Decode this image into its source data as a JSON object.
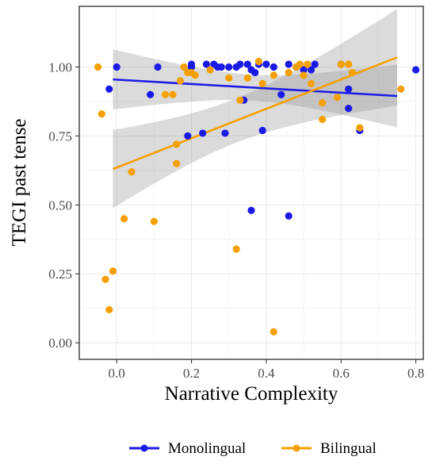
{
  "chart_data": {
    "type": "scatter",
    "xlabel": "Narrative Complexity",
    "ylabel": "TEGI past tense",
    "xlim": [
      -0.1,
      0.82
    ],
    "ylim": [
      -0.06,
      1.22
    ],
    "x_ticks": [
      0.0,
      0.2,
      0.4,
      0.6,
      0.8
    ],
    "x_tick_labels": [
      "0.0",
      "0.2",
      "0.4",
      "0.6",
      "0.8"
    ],
    "y_ticks": [
      0.0,
      0.25,
      0.5,
      0.75,
      1.0
    ],
    "y_tick_labels": [
      "0.00",
      "0.25",
      "0.50",
      "0.75",
      "1.00"
    ],
    "grid": true,
    "legend_position": "bottom",
    "series": [
      {
        "name": "Monolingual",
        "color": "#1a1ae6",
        "points": [
          [
            -0.02,
            0.92
          ],
          [
            0.0,
            1.0
          ],
          [
            0.09,
            0.9
          ],
          [
            0.11,
            1.0
          ],
          [
            0.19,
            0.75
          ],
          [
            0.2,
            1.0
          ],
          [
            0.2,
            1.01
          ],
          [
            0.23,
            0.76
          ],
          [
            0.24,
            1.01
          ],
          [
            0.26,
            1.01
          ],
          [
            0.27,
            1.0
          ],
          [
            0.28,
            1.0
          ],
          [
            0.29,
            0.76
          ],
          [
            0.3,
            1.0
          ],
          [
            0.32,
            1.0
          ],
          [
            0.33,
            1.01
          ],
          [
            0.34,
            0.88
          ],
          [
            0.35,
            1.01
          ],
          [
            0.36,
            0.48
          ],
          [
            0.36,
            0.99
          ],
          [
            0.37,
            0.98
          ],
          [
            0.38,
            1.01
          ],
          [
            0.39,
            0.77
          ],
          [
            0.4,
            1.01
          ],
          [
            0.42,
            1.0
          ],
          [
            0.44,
            0.9
          ],
          [
            0.46,
            0.46
          ],
          [
            0.46,
            1.01
          ],
          [
            0.48,
            1.0
          ],
          [
            0.5,
            0.99
          ],
          [
            0.52,
            0.99
          ],
          [
            0.53,
            1.01
          ],
          [
            0.6,
            1.01
          ],
          [
            0.62,
            0.85
          ],
          [
            0.62,
            0.92
          ],
          [
            0.65,
            0.77
          ],
          [
            0.8,
            0.99
          ]
        ],
        "trend": {
          "x": [
            -0.01,
            0.75
          ],
          "y": [
            0.955,
            0.895
          ]
        }
      },
      {
        "name": "Bilingual",
        "color": "#f5a000",
        "points": [
          [
            -0.05,
            1.0
          ],
          [
            -0.04,
            0.83
          ],
          [
            -0.03,
            0.23
          ],
          [
            -0.02,
            0.12
          ],
          [
            -0.01,
            0.26
          ],
          [
            0.02,
            0.45
          ],
          [
            0.04,
            0.62
          ],
          [
            0.1,
            0.44
          ],
          [
            0.13,
            0.9
          ],
          [
            0.15,
            0.9
          ],
          [
            0.16,
            0.72
          ],
          [
            0.16,
            0.65
          ],
          [
            0.17,
            0.95
          ],
          [
            0.18,
            1.0
          ],
          [
            0.19,
            0.98
          ],
          [
            0.2,
            0.98
          ],
          [
            0.21,
            0.97
          ],
          [
            0.25,
            0.99
          ],
          [
            0.3,
            0.96
          ],
          [
            0.32,
            0.34
          ],
          [
            0.33,
            0.88
          ],
          [
            0.35,
            0.96
          ],
          [
            0.38,
            1.02
          ],
          [
            0.39,
            0.94
          ],
          [
            0.42,
            0.97
          ],
          [
            0.42,
            0.04
          ],
          [
            0.46,
            0.98
          ],
          [
            0.48,
            1.0
          ],
          [
            0.49,
            1.01
          ],
          [
            0.5,
            0.97
          ],
          [
            0.51,
            1.01
          ],
          [
            0.52,
            0.94
          ],
          [
            0.55,
            0.81
          ],
          [
            0.55,
            0.87
          ],
          [
            0.59,
            0.89
          ],
          [
            0.6,
            1.01
          ],
          [
            0.62,
            1.01
          ],
          [
            0.63,
            0.98
          ],
          [
            0.65,
            0.78
          ],
          [
            0.76,
            0.92
          ]
        ],
        "trend": {
          "x": [
            -0.01,
            0.75
          ],
          "y": [
            0.63,
            1.035
          ]
        }
      }
    ]
  }
}
